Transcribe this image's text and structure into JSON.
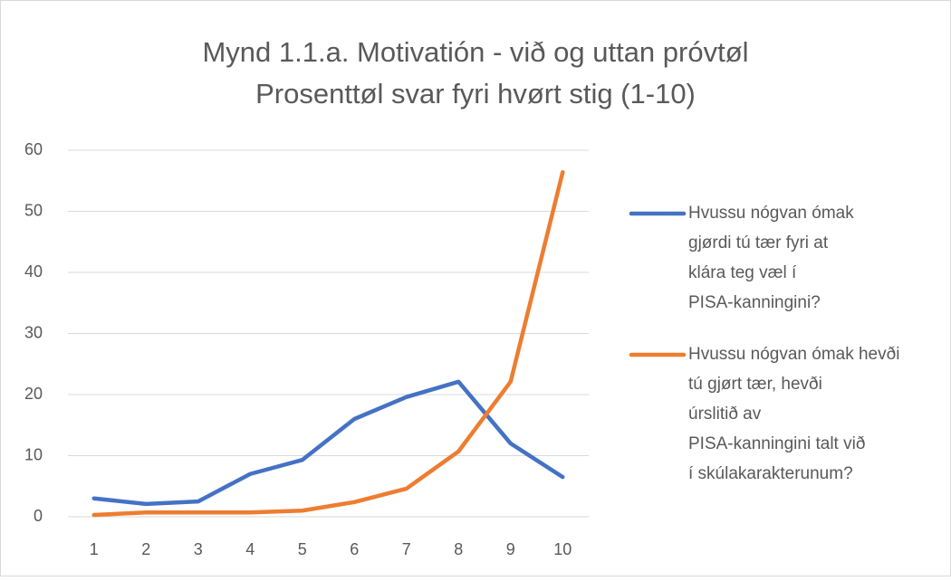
{
  "chart_data": {
    "type": "line",
    "title": "Mynd 1.1.a. Motivatión - við og uttan próvtøl",
    "subtitle": "Prosenttøl svar fyri hvørt stig (1-10)",
    "categories": [
      "1",
      "2",
      "3",
      "4",
      "5",
      "6",
      "7",
      "8",
      "9",
      "10"
    ],
    "series": [
      {
        "name": "Hvussu nógvan ómak gjørdi tú tær fyri at klára teg væl í PISA-kanningini?",
        "color": "#4472c4",
        "values": [
          3.0,
          2.1,
          2.5,
          7.0,
          9.3,
          16.0,
          19.6,
          22.1,
          12.0,
          6.5
        ]
      },
      {
        "name": "Hvussu nógvan ómak hevði tú gjørt tær, hevði úrslitið av PISA-kanningini talt við í skúlakarakterunum?",
        "color": "#ed7d31",
        "values": [
          0.3,
          0.7,
          0.7,
          0.7,
          1.0,
          2.4,
          4.6,
          10.7,
          22.1,
          56.4
        ]
      }
    ],
    "ylim": [
      0,
      60
    ],
    "yticks": [
      0,
      10,
      20,
      30,
      40,
      50,
      60
    ],
    "grid": true,
    "legend": "right"
  }
}
